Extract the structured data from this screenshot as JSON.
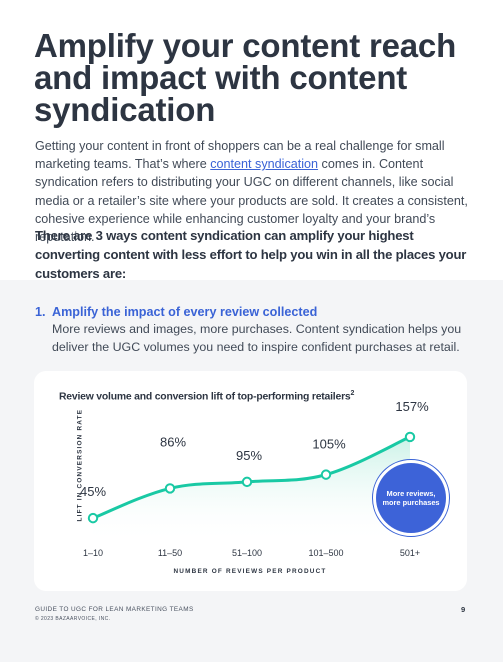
{
  "heading": "Amplify your content reach and impact with content syndication",
  "intro": {
    "before": "Getting your content in front of shoppers can be a real challenge for small marketing teams. That’s where ",
    "link": "content syndication",
    "after": " comes in. Content syndication refers to distributing your UGC on different channels, like social media or a retailer’s site where your products are sold. It creates a consistent, cohesive experience while enhancing customer loyalty and your brand’s reputation."
  },
  "ways": "There are 3 ways content syndication can amplify your highest converting content with less effort to help you win in all the places your customers are:",
  "item1": {
    "number": "1.",
    "title": "Amplify the impact of every review collected",
    "body": "More reviews and images, more purchases. Content syndication helps you deliver the UGC volumes you need to inspire confident purchases at retail."
  },
  "chart_data": {
    "type": "line",
    "title": "Review volume and conversion lift of top-performing retailers",
    "title_superscript": "2",
    "xlabel": "NUMBER OF REVIEWS PER PRODUCT",
    "ylabel": "LIFT IN CONVERSION RATE",
    "categories": [
      "1–10",
      "11–50",
      "51–100",
      "101–500",
      "501+"
    ],
    "values": [
      45,
      86,
      95,
      105,
      157
    ],
    "value_labels": [
      "45%",
      "86%",
      "95%",
      "105%",
      "157%"
    ],
    "callout": "More reviews, more purchases",
    "colors": {
      "line": "#19c9a4",
      "fill": "#dff7f1",
      "callout": "#3d63d8"
    }
  },
  "footer": {
    "guide": "GUIDE TO UGC FOR LEAN MARKETING TEAMS",
    "copyright": "© 2023 BAZAARVOICE, INC.",
    "page": "9"
  }
}
